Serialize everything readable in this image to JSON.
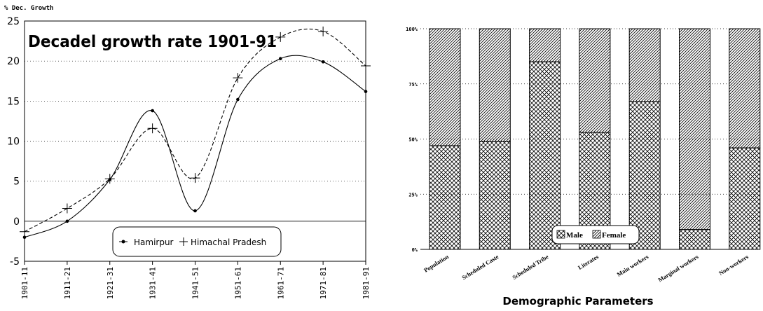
{
  "chart_data": [
    {
      "type": "line",
      "title": "Decadel growth rate 1901-91",
      "ylabel": "% Dec. Growth",
      "xlabel": "",
      "categories": [
        "1901-11",
        "1911-21",
        "1921-31",
        "1931-41",
        "1941-51",
        "1951-61",
        "1961-71",
        "1971-81",
        "1981-91"
      ],
      "ylim": [
        -5,
        25
      ],
      "yticks": [
        "-5",
        "0",
        "5",
        "10",
        "15",
        "20",
        "25"
      ],
      "grid": "horizontal dotted",
      "legend_position": "bottom-center",
      "series": [
        {
          "name": "Hamirpur",
          "marker": "dot",
          "line": "solid",
          "values": [
            -2.0,
            0.0,
            5.2,
            13.8,
            1.3,
            15.2,
            20.3,
            19.9,
            16.2
          ]
        },
        {
          "name": "Himachal Pradesh",
          "marker": "plus",
          "line": "dashed",
          "values": [
            -1.3,
            1.6,
            5.3,
            11.6,
            5.4,
            17.9,
            23.0,
            23.7,
            19.4
          ]
        }
      ]
    },
    {
      "type": "bar",
      "stacked": true,
      "percent": true,
      "xlabel": "Demographic Parameters",
      "ylabel": "",
      "categories": [
        "Population",
        "Scheduled Caste",
        "Scheduled Tribe",
        "Literates",
        "Main workers",
        "Marginal workers",
        "Non-workers"
      ],
      "yticks": [
        "0%",
        "25%",
        "50%",
        "75%",
        "100%"
      ],
      "ylim": [
        0,
        100
      ],
      "grid": "horizontal dotted",
      "legend_position": "bottom-center",
      "series": [
        {
          "name": "Male",
          "pattern": "crosshatch",
          "values": [
            47,
            49,
            85,
            53,
            67,
            9,
            46
          ]
        },
        {
          "name": "Female",
          "pattern": "diagonal",
          "values": [
            53,
            51,
            15,
            47,
            33,
            91,
            54
          ]
        }
      ]
    }
  ]
}
